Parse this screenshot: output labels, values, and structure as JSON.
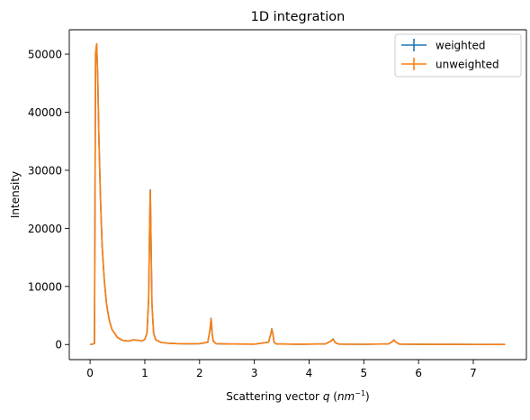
{
  "chart_data": {
    "type": "line",
    "title": "1D integration",
    "xlabel_main": "Scattering vector ",
    "xlabel_var": "q",
    "xlabel_unit_open": " (",
    "xlabel_unit_base": "nm",
    "xlabel_unit_exp": "−1",
    "xlabel_unit_close": ")",
    "ylabel": "Intensity",
    "xlim": [
      -0.38,
      7.97
    ],
    "ylim": [
      -2600,
      54200
    ],
    "xticks": [
      0,
      1,
      2,
      3,
      4,
      5,
      6,
      7
    ],
    "xtick_labels": [
      "0",
      "1",
      "2",
      "3",
      "4",
      "5",
      "6",
      "7"
    ],
    "yticks": [
      0,
      10000,
      20000,
      30000,
      40000,
      50000
    ],
    "ytick_labels": [
      "0",
      "10000",
      "20000",
      "30000",
      "40000",
      "50000"
    ],
    "legend_position": "top-right",
    "series": [
      {
        "name": "weighted",
        "color": "#1f77b4",
        "x": [
          0.0,
          0.06,
          0.08,
          0.1,
          0.12,
          0.14,
          0.16,
          0.19,
          0.22,
          0.26,
          0.3,
          0.35,
          0.4,
          0.5,
          0.6,
          0.7,
          0.8,
          0.9,
          0.95,
          1.0,
          1.04,
          1.07,
          1.09,
          1.1,
          1.11,
          1.13,
          1.16,
          1.2,
          1.3,
          1.4,
          1.6,
          1.8,
          2.0,
          2.15,
          2.19,
          2.21,
          2.22,
          2.23,
          2.25,
          2.3,
          2.6,
          3.0,
          3.26,
          3.3,
          3.32,
          3.34,
          3.36,
          3.4,
          3.8,
          4.3,
          4.4,
          4.44,
          4.48,
          4.55,
          5.0,
          5.45,
          5.52,
          5.55,
          5.58,
          5.65,
          6.2,
          7.0,
          7.58
        ],
        "y": [
          0,
          100,
          200,
          50000,
          51700,
          46000,
          36000,
          25000,
          17000,
          11000,
          7000,
          4200,
          2600,
          1200,
          700,
          600,
          800,
          700,
          600,
          900,
          2000,
          8000,
          22000,
          26600,
          20000,
          7000,
          2000,
          800,
          350,
          250,
          150,
          120,
          140,
          400,
          2500,
          4500,
          3500,
          1800,
          600,
          150,
          80,
          60,
          400,
          1800,
          2700,
          1800,
          400,
          100,
          50,
          100,
          600,
          950,
          300,
          60,
          40,
          100,
          500,
          800,
          450,
          60,
          30,
          20,
          10
        ]
      },
      {
        "name": "unweighted",
        "color": "#ff7f0e",
        "x": [
          0.0,
          0.06,
          0.08,
          0.1,
          0.12,
          0.14,
          0.16,
          0.19,
          0.22,
          0.26,
          0.3,
          0.35,
          0.4,
          0.5,
          0.6,
          0.7,
          0.8,
          0.9,
          0.95,
          1.0,
          1.04,
          1.07,
          1.09,
          1.1,
          1.11,
          1.13,
          1.16,
          1.2,
          1.3,
          1.4,
          1.6,
          1.8,
          2.0,
          2.15,
          2.19,
          2.21,
          2.22,
          2.23,
          2.25,
          2.3,
          2.6,
          3.0,
          3.26,
          3.3,
          3.32,
          3.34,
          3.36,
          3.4,
          3.8,
          4.3,
          4.4,
          4.44,
          4.48,
          4.55,
          5.0,
          5.45,
          5.52,
          5.55,
          5.58,
          5.65,
          6.2,
          7.0,
          7.58
        ],
        "y": [
          0,
          100,
          200,
          50200,
          51800,
          46000,
          36000,
          25000,
          17000,
          11000,
          7000,
          4200,
          2600,
          1200,
          700,
          600,
          800,
          700,
          600,
          900,
          2000,
          8000,
          22000,
          26500,
          20000,
          7000,
          2000,
          800,
          350,
          250,
          150,
          120,
          140,
          400,
          2500,
          4400,
          3500,
          1800,
          600,
          150,
          80,
          60,
          400,
          1800,
          2600,
          1800,
          400,
          100,
          50,
          100,
          600,
          900,
          300,
          60,
          40,
          100,
          500,
          750,
          450,
          60,
          30,
          20,
          10
        ]
      }
    ]
  }
}
